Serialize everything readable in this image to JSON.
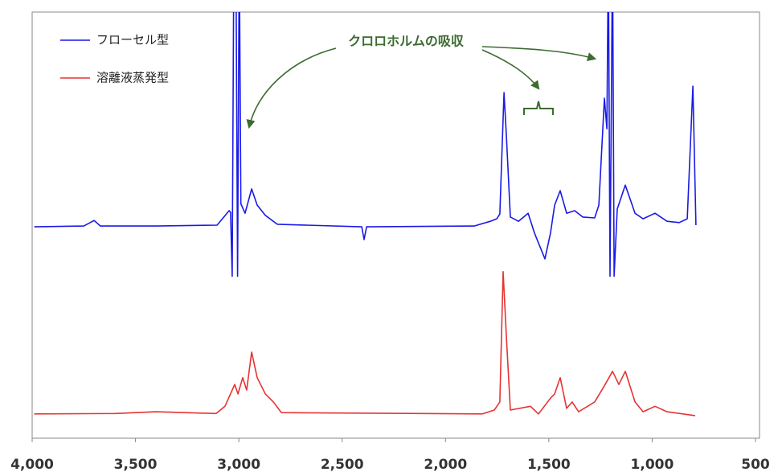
{
  "chart_data": {
    "type": "line",
    "annotations": [
      "クロロホルムの吸収"
    ],
    "xlim": [
      4000,
      500
    ],
    "ylim": [
      0,
      100
    ],
    "xticks": [
      {
        "value": 4000,
        "label": "4,000"
      },
      {
        "value": 3500,
        "label": "3,500"
      },
      {
        "value": 3000,
        "label": "3,000"
      },
      {
        "value": 2500,
        "label": "2,500"
      },
      {
        "value": 2000,
        "label": "2,000"
      },
      {
        "value": 1500,
        "label": "1,500"
      },
      {
        "value": 1000,
        "label": "1,000"
      },
      500
    ],
    "legend": "upper left",
    "series": [
      {
        "name": "フローセル型",
        "color": "#1a1ae6",
        "x": [
          3990,
          3750,
          3700,
          3670,
          3400,
          3105,
          3047,
          3040,
          3032,
          3024,
          3014,
          3006,
          2998,
          2990,
          2970,
          2938,
          2911,
          2872,
          2814,
          2405,
          2394,
          2382,
          1861,
          1783,
          1752,
          1737,
          1717,
          1705,
          1686,
          1647,
          1600,
          1569,
          1519,
          1492,
          1472,
          1445,
          1414,
          1375,
          1336,
          1278,
          1258,
          1231,
          1219,
          1212,
          1204,
          1192,
          1184,
          1169,
          1130,
          1083,
          1044,
          986,
          928,
          869,
          830,
          803,
          788
        ],
        "values": [
          49.6,
          49.8,
          51.1,
          49.8,
          49.8,
          50,
          53.4,
          53,
          38,
          115,
          115,
          38,
          115,
          55,
          52.8,
          58.5,
          54.7,
          52.3,
          50.2,
          49.6,
          46.6,
          49.6,
          49.8,
          50.9,
          51.5,
          52.6,
          81.1,
          70.8,
          51.9,
          50.9,
          52.8,
          48.1,
          42.1,
          48.1,
          54.7,
          58.1,
          52.8,
          53.4,
          51.9,
          51.7,
          54.7,
          79.8,
          72.6,
          115,
          38,
          115,
          38,
          53.8,
          59.4,
          52.8,
          51.5,
          52.8,
          50.9,
          50.6,
          51.5,
          82.6,
          50
        ]
      },
      {
        "name": "溶離液蒸発型",
        "color": "#e63333",
        "x": [
          3990,
          3600,
          3400,
          3110,
          3067,
          3020,
          3004,
          2981,
          2962,
          2938,
          2911,
          2872,
          2833,
          2794,
          1822,
          1764,
          1737,
          1721,
          1705,
          1686,
          1589,
          1550,
          1492,
          1472,
          1445,
          1414,
          1387,
          1356,
          1278,
          1231,
          1192,
          1161,
          1130,
          1083,
          1044,
          986,
          928,
          792
        ],
        "values": [
          5.7,
          5.8,
          6.2,
          5.8,
          7.5,
          12.6,
          10.4,
          14.2,
          11.3,
          20.2,
          14.2,
          10.4,
          8.5,
          6.0,
          5.7,
          6.6,
          8.5,
          39.1,
          23.6,
          6.6,
          7.5,
          5.7,
          9.4,
          10.4,
          14.2,
          7.0,
          8.5,
          6.2,
          8.5,
          12.3,
          15.7,
          12.6,
          15.7,
          8.5,
          6.2,
          7.5,
          6.2,
          5.3
        ]
      }
    ]
  }
}
